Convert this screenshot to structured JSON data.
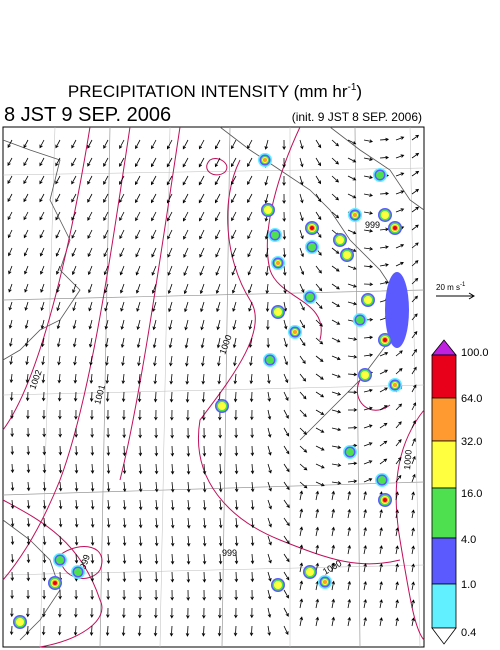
{
  "header": {
    "title": "PRECIPITATION INTENSITY (mm hr",
    "title_exponent": "-1",
    "title_close": ")",
    "valid_time": "8 JST 9 SEP. 2006",
    "init_time": "(init. 9 JST 8 SEP. 2006)"
  },
  "wind_scale": {
    "label": "20 m s",
    "exponent": "-1"
  },
  "colorbar": {
    "labels": [
      "100.0",
      "64.0",
      "32.0",
      "16.0",
      "4.0",
      "1.0",
      "0.4"
    ]
  },
  "contour_labels": [
    "999",
    "1000",
    "1001",
    "1002",
    "999",
    "1000",
    "999",
    "1000"
  ]
}
